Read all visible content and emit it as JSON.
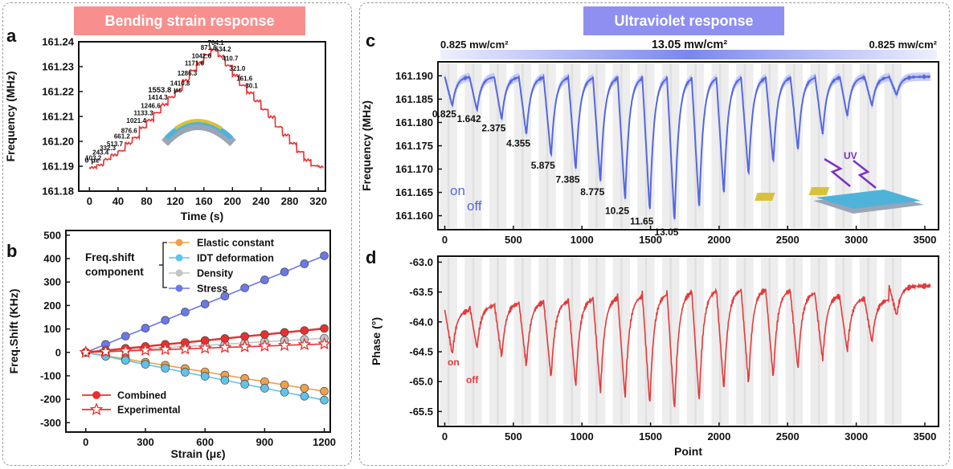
{
  "panels": {
    "left_title": "Bending strain response",
    "right_title": "Ultraviolet response",
    "left_color": "#f98e8e",
    "right_color": "#8f8ff2",
    "labels": {
      "a": "a",
      "b": "b",
      "c": "c",
      "d": "d"
    }
  },
  "chart_data": [
    {
      "id": "a",
      "type": "line",
      "title": "",
      "xlabel": "Time (s)",
      "ylabel": "Frequency (MHz)",
      "xlim": [
        -15,
        330
      ],
      "ylim": [
        161.18,
        161.24
      ],
      "xticks": [
        "0",
        "40",
        "80",
        "120",
        "160",
        "200",
        "240",
        "280",
        "320"
      ],
      "yticks": [
        "161.18",
        "161.19",
        "161.20",
        "161.21",
        "161.22",
        "161.23",
        "161.24"
      ],
      "color": "#e8312f",
      "steps_time": [
        0,
        10,
        20,
        30,
        40,
        50,
        60,
        70,
        80,
        90,
        100,
        110,
        120,
        130,
        140,
        150,
        160,
        170,
        180,
        190,
        200,
        210,
        220,
        230,
        240,
        250,
        260,
        270,
        280,
        290,
        300,
        310,
        320
      ],
      "steps_freq": [
        161.1895,
        161.1905,
        161.1928,
        161.1945,
        161.1962,
        161.1992,
        161.2015,
        161.2055,
        161.2085,
        161.2115,
        161.2148,
        161.2178,
        161.2205,
        161.2245,
        161.2285,
        161.2315,
        161.2348,
        161.2368,
        161.2342,
        161.2305,
        161.2265,
        161.2225,
        161.2195,
        161.2162,
        161.2128,
        161.2098,
        161.2058,
        161.2025,
        161.1992,
        161.1958,
        161.1925,
        161.1902,
        161.1897
      ],
      "annotations": [
        {
          "text": "0 με",
          "t": 0,
          "f": 161.1895
        },
        {
          "text": "103.2",
          "t": 10,
          "f": 161.1905
        },
        {
          "text": "243.4",
          "t": 20,
          "f": 161.1928
        },
        {
          "text": "332.3",
          "t": 30,
          "f": 161.1945
        },
        {
          "text": "513.7",
          "t": 40,
          "f": 161.1962
        },
        {
          "text": "661.2",
          "t": 50,
          "f": 161.1992
        },
        {
          "text": "876.6",
          "t": 60,
          "f": 161.2015
        },
        {
          "text": "1021.4",
          "t": 70,
          "f": 161.2055
        },
        {
          "text": "1133.3",
          "t": 80,
          "f": 161.2085
        },
        {
          "text": "1246.6",
          "t": 90,
          "f": 161.2115
        },
        {
          "text": "1414.3",
          "t": 100,
          "f": 161.2148
        },
        {
          "text": "1553.8 με",
          "t": 110,
          "f": 161.2178
        },
        {
          "text": "1410.8",
          "t": 120,
          "f": 161.2205
        },
        {
          "text": "1286.3",
          "t": 130,
          "f": 161.2245
        },
        {
          "text": "1171.6",
          "t": 140,
          "f": 161.2285
        },
        {
          "text": "1042.6",
          "t": 150,
          "f": 161.2315
        },
        {
          "text": "871.6",
          "t": 160,
          "f": 161.2348
        },
        {
          "text": "704.1",
          "t": 170,
          "f": 161.2368
        },
        {
          "text": "534.2",
          "t": 180,
          "f": 161.2342
        },
        {
          "text": "410.7",
          "t": 190,
          "f": 161.2305
        },
        {
          "text": "321.0",
          "t": 200,
          "f": 161.2265
        },
        {
          "text": "161.6",
          "t": 210,
          "f": 161.2225
        },
        {
          "text": "30.1",
          "t": 220,
          "f": 161.2195
        }
      ]
    },
    {
      "id": "b",
      "type": "line",
      "xlabel": "Strain (με)",
      "ylabel": "Freq.Shift (KHz)",
      "xlim": [
        -100,
        1230
      ],
      "ylim": [
        -340,
        520
      ],
      "xticks": [
        "0",
        "300",
        "600",
        "900",
        "1200"
      ],
      "yticks": [
        "-300",
        "-200",
        "-100",
        "0",
        "100",
        "200",
        "300",
        "400",
        "500"
      ],
      "legend_title": "Freq.shift component",
      "x": [
        0,
        100,
        200,
        300,
        400,
        500,
        600,
        700,
        800,
        900,
        1000,
        1100,
        1200
      ],
      "series": [
        {
          "name": "Elastic constant",
          "color": "#f0a04b",
          "marker": "circle",
          "values": [
            0,
            -14,
            -28,
            -42,
            -55,
            -69,
            -83,
            -97,
            -111,
            -125,
            -139,
            -153,
            -166
          ]
        },
        {
          "name": "IDT deformation",
          "color": "#5fc3ec",
          "marker": "circle",
          "values": [
            0,
            -17,
            -34,
            -51,
            -68,
            -85,
            -102,
            -119,
            -136,
            -153,
            -170,
            -187,
            -204
          ]
        },
        {
          "name": "Density",
          "color": "#c4c4c4",
          "marker": "circle",
          "values": [
            0,
            5,
            10,
            15,
            20,
            25,
            30,
            35,
            40,
            45,
            50,
            55,
            60
          ]
        },
        {
          "name": "Stress",
          "color": "#6b78e8",
          "marker": "circle",
          "values": [
            0,
            34,
            69,
            103,
            137,
            172,
            206,
            240,
            275,
            309,
            343,
            378,
            412
          ]
        },
        {
          "name": "Combined",
          "color": "#e8312f",
          "marker": "circle",
          "values": [
            0,
            8,
            17,
            25,
            34,
            42,
            51,
            59,
            68,
            76,
            85,
            93,
            102
          ]
        },
        {
          "name": "Experimental",
          "color": "#e8312f",
          "marker": "star",
          "values": [
            0,
            3,
            6,
            9,
            12,
            15,
            18,
            21,
            24,
            27,
            30,
            33,
            36
          ]
        }
      ]
    },
    {
      "id": "c",
      "type": "line",
      "xlabel": "",
      "ylabel": "Frequency (MHz)",
      "xlim": [
        -50,
        3600
      ],
      "ylim": [
        161.157,
        161.193
      ],
      "xticks": [
        "0",
        "500",
        "1000",
        "1500",
        "2000",
        "2500",
        "3000",
        "3500"
      ],
      "yticks": [
        "161.160",
        "161.165",
        "161.170",
        "161.175",
        "161.180",
        "161.185",
        "161.190"
      ],
      "color": "#5568e0",
      "band_color": "#b9c0f4",
      "intensity_left": "0.825 mw/cm²",
      "intensity_mid": "13.05 mw/cm²",
      "intensity_right": "0.825 mw/cm²",
      "on_label": "on",
      "off_label": "off",
      "uv_label": "UV",
      "cycles_start": [
        0,
        180,
        360,
        540,
        720,
        900,
        1080,
        1260,
        1440,
        1620,
        1800,
        1980,
        2160,
        2340,
        2520,
        2700,
        2880,
        3060,
        3240
      ],
      "cycle_min": [
        161.1835,
        161.1825,
        161.1805,
        161.1772,
        161.1725,
        161.1695,
        161.1668,
        161.1628,
        161.1605,
        161.1582,
        161.1612,
        161.1642,
        161.1685,
        161.1712,
        161.1738,
        161.1772,
        161.1812,
        161.1835,
        161.1858
      ],
      "peak_labels": [
        "0.825",
        "1.642",
        "2.375",
        "4.355",
        "5.875",
        "7.385",
        "8.775",
        "10.25",
        "11.65",
        "13.05"
      ]
    },
    {
      "id": "d",
      "type": "line",
      "xlabel": "Point",
      "ylabel": "Phase (°)",
      "xlim": [
        -50,
        3600
      ],
      "ylim": [
        -65.75,
        -62.9
      ],
      "xticks": [
        "0",
        "500",
        "1000",
        "1500",
        "2000",
        "2500",
        "3000",
        "3500"
      ],
      "yticks": [
        "-65.5",
        "-65.0",
        "-64.5",
        "-64.0",
        "-63.5",
        "-63.0"
      ],
      "color": "#e23b3b",
      "on_label": "on",
      "off_label": "off",
      "cycles_start": [
        0,
        180,
        360,
        540,
        720,
        900,
        1080,
        1260,
        1440,
        1620,
        1800,
        1980,
        2160,
        2340,
        2520,
        2700,
        2880,
        3060,
        3240
      ],
      "cycle_min": [
        -64.55,
        -64.45,
        -64.6,
        -64.75,
        -64.95,
        -65.1,
        -65.2,
        -65.3,
        -65.4,
        -65.5,
        -65.35,
        -65.15,
        -65.05,
        -64.95,
        -64.8,
        -64.65,
        -64.5,
        -64.35,
        -63.9
      ],
      "cycle_peak": [
        -63.8,
        -63.72,
        -63.68,
        -63.66,
        -63.64,
        -63.6,
        -63.58,
        -63.55,
        -63.52,
        -63.48,
        -63.46,
        -63.45,
        -63.44,
        -63.46,
        -63.5,
        -63.55,
        -63.6,
        -63.62,
        -63.4
      ]
    }
  ]
}
